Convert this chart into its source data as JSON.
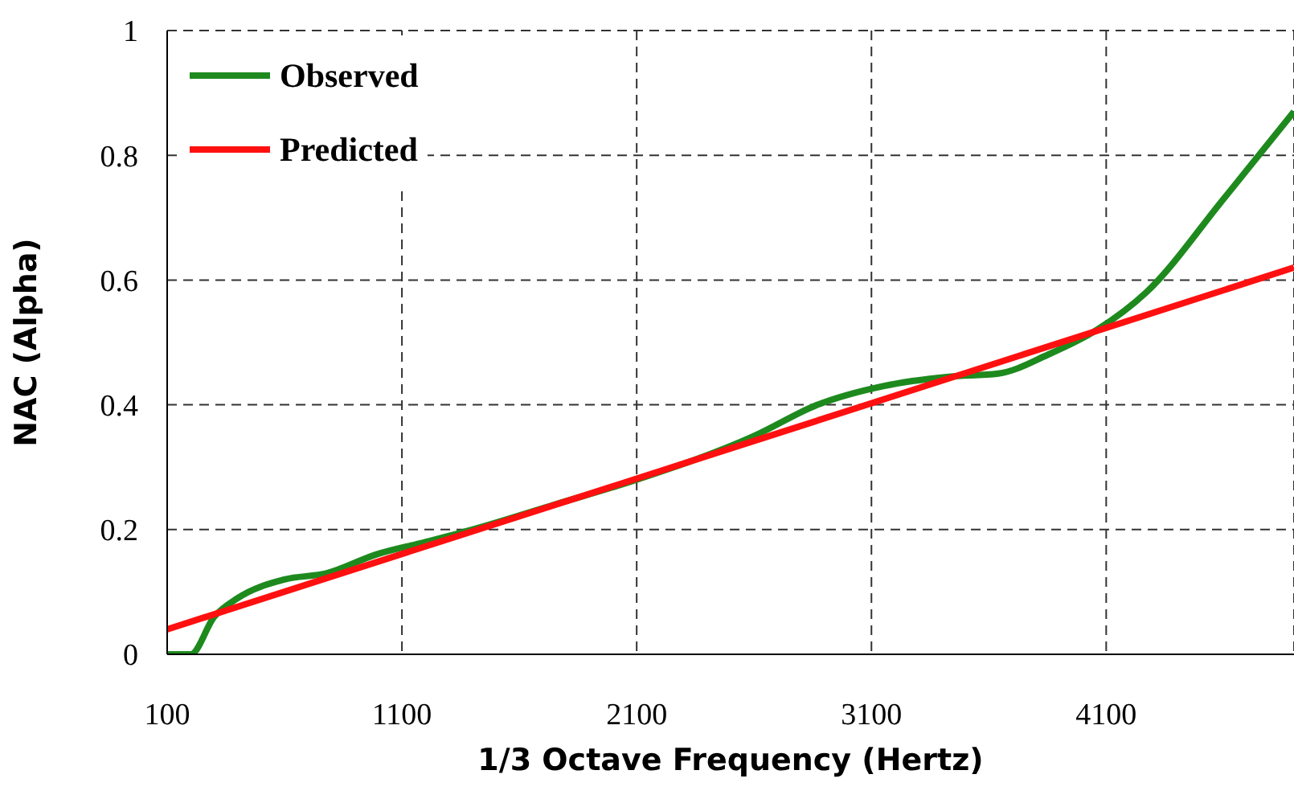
{
  "chart_data": {
    "type": "line",
    "xlabel": "1/3 Octave Frequency (Hertz)",
    "ylabel": "NAC (Alpha)",
    "xlim": [
      100,
      4900
    ],
    "xticks": [
      100,
      1100,
      2100,
      3100,
      4100
    ],
    "ylim": [
      0,
      1
    ],
    "yticks": [
      0,
      0.2,
      0.4,
      0.6,
      0.8,
      1
    ],
    "grid": true,
    "legend": "top left",
    "marker": "none",
    "line_style": "solid",
    "series": [
      {
        "name": "Observed",
        "color": "#1e8a1e",
        "x": [
          100,
          200,
          300,
          400,
          600,
          780,
          990,
          1200,
          1400,
          1750,
          2100,
          2600,
          2870,
          3150,
          3430,
          3640,
          3850,
          4060,
          4270,
          4600,
          4900
        ],
        "values": [
          0,
          0,
          0.06,
          0.09,
          0.12,
          0.13,
          0.16,
          0.18,
          0.2,
          0.24,
          0.28,
          0.35,
          0.4,
          0.43,
          0.445,
          0.45,
          0.48,
          0.52,
          0.58,
          0.73,
          0.87
        ]
      },
      {
        "name": "Predicted",
        "color": "#ff1010",
        "x": [
          100,
          2500,
          4900
        ],
        "values": [
          0.04,
          0.33,
          0.62
        ]
      }
    ]
  }
}
